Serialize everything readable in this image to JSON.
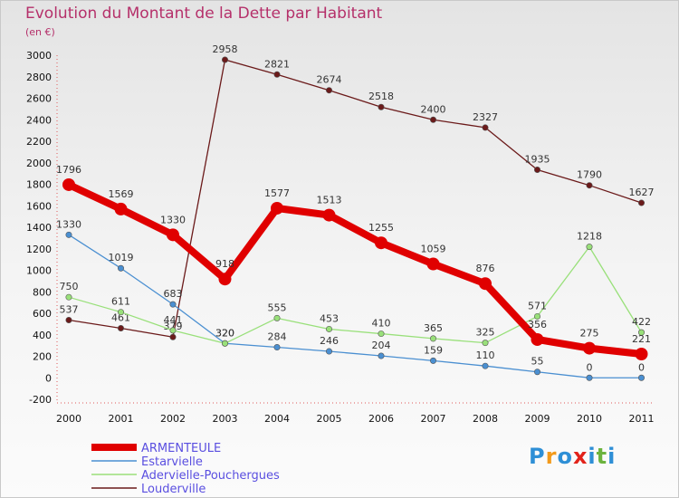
{
  "header": {
    "title": "Evolution du Montant de la Dette par Habitant",
    "subtitle": "(en €)"
  },
  "logo": {
    "text": "Proxiti",
    "colors": [
      "#2e8fd6",
      "#f29a1b",
      "#2e8fd6",
      "#e2231a",
      "#2e8fd6",
      "#6cb33e",
      "#2e8fd6"
    ]
  },
  "chart_data": {
    "type": "line",
    "title": "Evolution du Montant de la Dette par Habitant",
    "subtitle": "(en €)",
    "xlabel": "",
    "ylabel": "",
    "x": [
      "2000",
      "2001",
      "2002",
      "2003",
      "2004",
      "2005",
      "2006",
      "2007",
      "2008",
      "2009",
      "2010",
      "2011"
    ],
    "ylim": [
      -200,
      3000
    ],
    "yticks": [
      -200,
      0,
      200,
      400,
      600,
      800,
      1000,
      1200,
      1400,
      1600,
      1800,
      2000,
      2200,
      2400,
      2600,
      2800,
      3000
    ],
    "grid": false,
    "legend_position": "bottom-left",
    "series": [
      {
        "name": "Louderville",
        "color": "#6b1a1a",
        "labels": [
          537,
          461,
          379,
          2958,
          2821,
          2674,
          2518,
          2400,
          2327,
          1935,
          1790,
          1627
        ],
        "values": [
          537,
          461,
          379,
          2958,
          2821,
          2674,
          2518,
          2400,
          2327,
          1935,
          1790,
          1627
        ]
      },
      {
        "name": "Estarvielle",
        "color": "#4a8fd1",
        "labels": [
          1330,
          1019,
          683,
          320,
          284,
          246,
          204,
          159,
          110,
          55,
          0,
          0
        ],
        "values": [
          1330,
          1019,
          683,
          320,
          284,
          246,
          204,
          159,
          110,
          55,
          0,
          0
        ]
      },
      {
        "name": "Adervielle-Pouchergues",
        "color": "#99e07a",
        "labels": [
          750,
          611,
          441,
          320,
          555,
          453,
          410,
          365,
          325,
          571,
          1218,
          422
        ],
        "values": [
          750,
          611,
          441,
          320,
          555,
          453,
          410,
          365,
          325,
          571,
          1218,
          422
        ]
      },
      {
        "name": "ARMENTEULE",
        "color": "#e00000",
        "labels": [
          1796,
          1569,
          1330,
          918,
          1577,
          1513,
          1255,
          1059,
          876,
          356,
          275,
          221
        ],
        "values": [
          1796,
          1569,
          1330,
          918,
          1577,
          1513,
          1255,
          1059,
          876,
          356,
          275,
          221
        ]
      }
    ],
    "legend": [
      {
        "name": "ARMENTEULE",
        "color": "#e00000",
        "thick": true
      },
      {
        "name": "Estarvielle",
        "color": "#4a8fd1",
        "thick": false
      },
      {
        "name": "Adervielle-Pouchergues",
        "color": "#99e07a",
        "thick": false
      },
      {
        "name": "Louderville",
        "color": "#6b1a1a",
        "thick": false
      }
    ]
  }
}
